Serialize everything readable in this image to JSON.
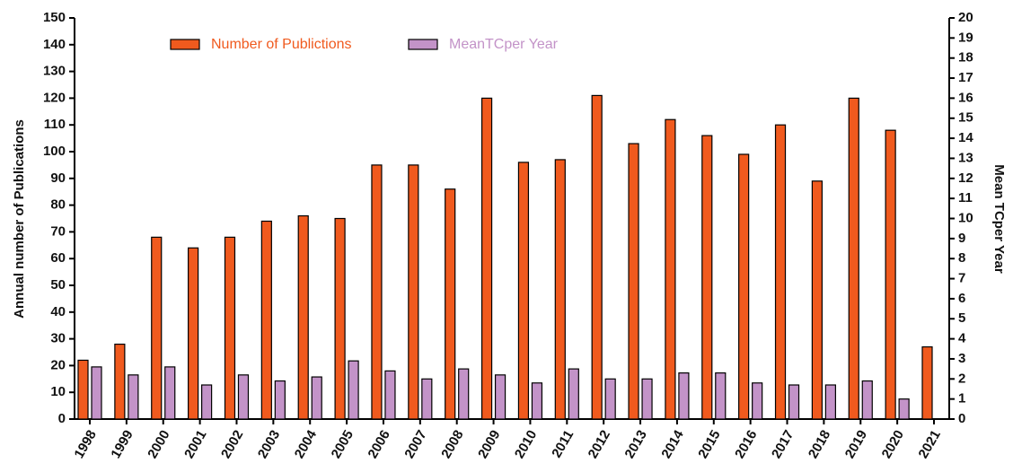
{
  "chart_data": {
    "type": "bar",
    "categories": [
      "1998",
      "1999",
      "2000",
      "2001",
      "2002",
      "2003",
      "2004",
      "2005",
      "2006",
      "2007",
      "2008",
      "2009",
      "2010",
      "2011",
      "2012",
      "2013",
      "2014",
      "2015",
      "2016",
      "2017",
      "2018",
      "2019",
      "2020",
      "2021"
    ],
    "series": [
      {
        "name": "Number of Publictions",
        "color": "#f05a1e",
        "values": [
          22,
          28,
          68,
          64,
          68,
          74,
          76,
          75,
          95,
          95,
          86,
          120,
          96,
          97,
          121,
          103,
          112,
          106,
          99,
          110,
          89,
          120,
          108,
          27
        ]
      },
      {
        "name": "MeanTCper Year",
        "color": "#c393c8",
        "axis": "y2",
        "values": [
          2.6,
          2.2,
          2.6,
          1.7,
          2.2,
          1.9,
          2.1,
          2.9,
          2.4,
          2.0,
          2.5,
          2.2,
          1.8,
          2.5,
          2.0,
          2.0,
          2.3,
          2.3,
          1.8,
          1.7,
          1.7,
          1.9,
          1.0,
          null
        ]
      }
    ],
    "ylabel": "Annual number of Publications",
    "y2label": "Mean TCper Year",
    "ylim": [
      0,
      150
    ],
    "yticks": [
      0,
      10,
      20,
      30,
      40,
      50,
      60,
      70,
      80,
      90,
      100,
      110,
      120,
      130,
      140,
      150
    ],
    "y2lim": [
      0,
      20
    ],
    "y2ticks": [
      0,
      1,
      2,
      3,
      4,
      5,
      6,
      7,
      8,
      9,
      10,
      11,
      12,
      13,
      14,
      15,
      16,
      17,
      18,
      19,
      20
    ]
  }
}
